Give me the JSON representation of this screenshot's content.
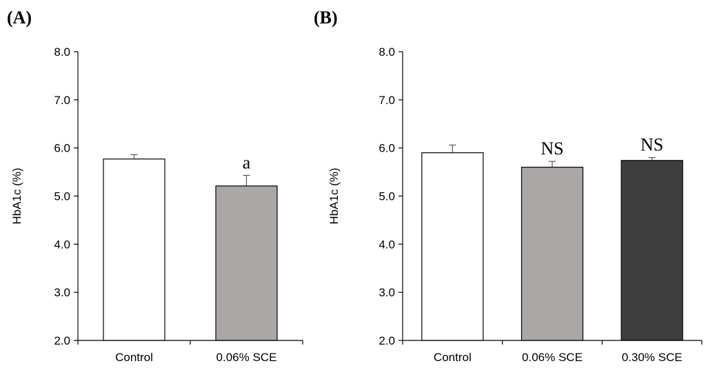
{
  "chart_data": [
    {
      "type": "bar",
      "panel_label": "(A)",
      "ylabel": "HbA1c (%)",
      "ylim": [
        2.0,
        8.0
      ],
      "yticks": [
        "2.0",
        "3.0",
        "4.0",
        "5.0",
        "6.0",
        "7.0",
        "8.0"
      ],
      "categories": [
        "Control",
        "0.06% SCE"
      ],
      "values": [
        5.77,
        5.21
      ],
      "errors": [
        0.09,
        0.22
      ],
      "colors": [
        "#ffffff",
        "#aba7a6"
      ],
      "annotations": [
        "",
        "a"
      ]
    },
    {
      "type": "bar",
      "panel_label": "(B)",
      "ylabel": "HbA1c (%)",
      "ylim": [
        2.0,
        8.0
      ],
      "yticks": [
        "2.0",
        "3.0",
        "4.0",
        "5.0",
        "6.0",
        "7.0",
        "8.0"
      ],
      "categories": [
        "Control",
        "0.06% SCE",
        "0.30% SCE"
      ],
      "values": [
        5.9,
        5.6,
        5.74
      ],
      "errors": [
        0.16,
        0.12,
        0.06
      ],
      "colors": [
        "#ffffff",
        "#aba7a6",
        "#3e3e3e"
      ],
      "annotations": [
        "",
        "NS",
        "NS"
      ]
    }
  ]
}
